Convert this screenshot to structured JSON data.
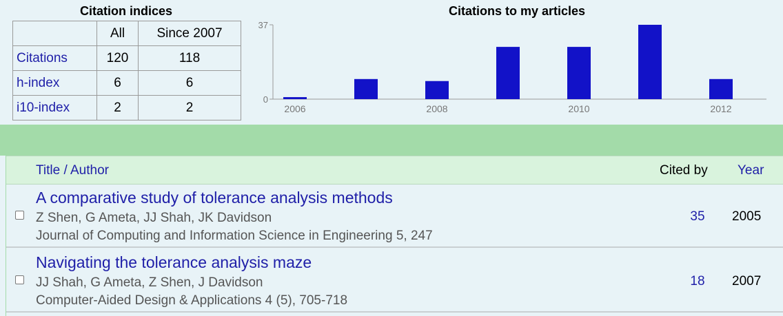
{
  "citation_indices": {
    "title": "Citation indices",
    "headers": [
      "",
      "All",
      "Since 2007"
    ],
    "rows": [
      {
        "label": "Citations",
        "all": "120",
        "since": "118"
      },
      {
        "label": "h-index",
        "all": "6",
        "since": "6"
      },
      {
        "label": "i10-index",
        "all": "2",
        "since": "2"
      }
    ]
  },
  "chart_title": "Citations to my articles",
  "chart_data": {
    "type": "bar",
    "title": "Citations to my articles",
    "categories": [
      "2006",
      "2007",
      "2008",
      "2009",
      "2010",
      "2011",
      "2012"
    ],
    "values": [
      1,
      10,
      9,
      26,
      26,
      37,
      10
    ],
    "x_tick_labels": [
      "2006",
      "2008",
      "2010",
      "2012"
    ],
    "y_tick_labels": [
      "0",
      "37"
    ],
    "ylim": [
      0,
      37
    ],
    "bar_color": "#1212c8",
    "grid": false
  },
  "results": {
    "header": {
      "title_author": "Title / Author",
      "cited_by": "Cited by",
      "year": "Year"
    },
    "rows": [
      {
        "title": "A comparative study of tolerance analysis methods",
        "authors": "Z Shen, G Ameta, JJ Shah, JK Davidson",
        "venue": "Journal of Computing and Information Science in Engineering 5, 247",
        "cited_by": "35",
        "year": "2005"
      },
      {
        "title": "Navigating the tolerance analysis maze",
        "authors": "JJ Shah, G Ameta, Z Shen, J Davidson",
        "venue": "Computer-Aided Design & Applications 4 (5), 705-718",
        "cited_by": "18",
        "year": "2007"
      }
    ]
  }
}
